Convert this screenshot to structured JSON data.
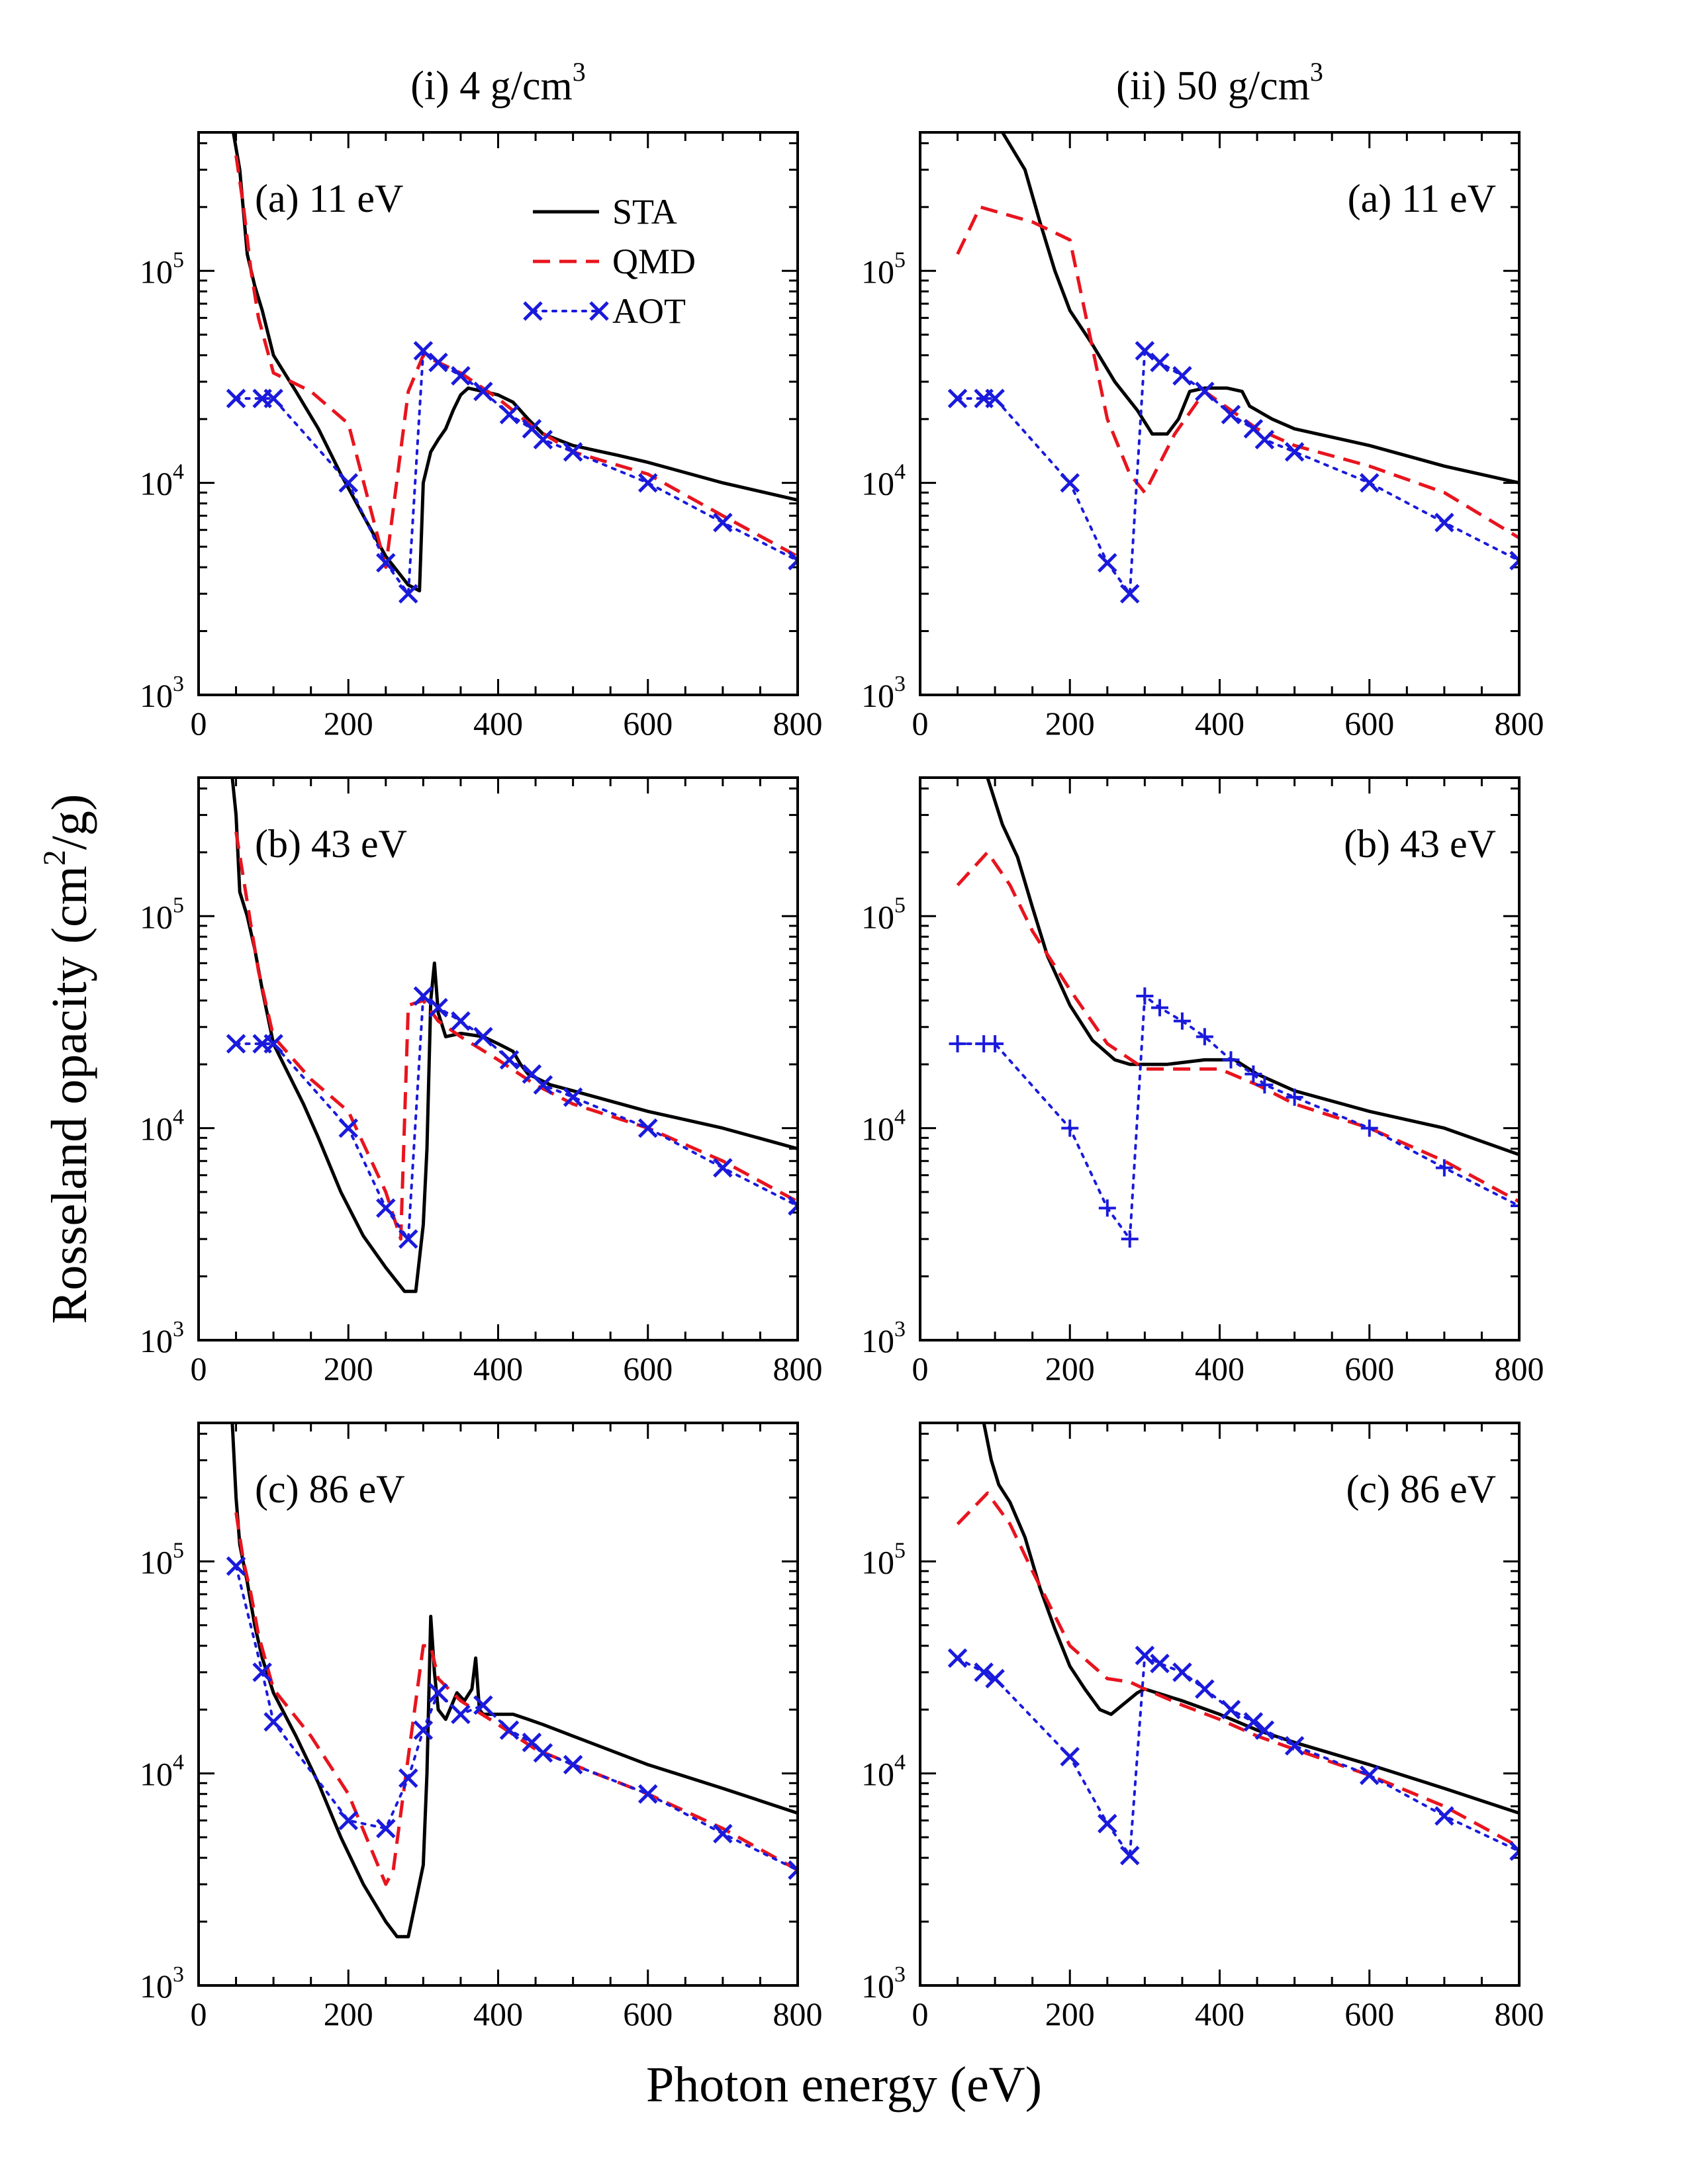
{
  "figure": {
    "xlabel": "Photon energy (eV)",
    "ylabel_main": "Rosseland opacity (cm",
    "ylabel_sup": "2",
    "ylabel_end": "/g)",
    "columns": [
      {
        "title_main": "(i) 4 g/cm",
        "title_sup": "3"
      },
      {
        "title_main": "(ii) 50 g/cm",
        "title_sup": "3"
      }
    ],
    "x_ticks": [
      "0",
      "200",
      "400",
      "600",
      "800"
    ],
    "y_ticks": [
      {
        "base": "10",
        "exp": "3"
      },
      {
        "base": "10",
        "exp": "4"
      },
      {
        "base": "10",
        "exp": "5"
      }
    ],
    "colors": {
      "STA": "#000000",
      "QMD": "#e8141e",
      "AOT": "#1a1adc"
    },
    "legend": [
      {
        "label": "STA",
        "style": "solid"
      },
      {
        "label": "QMD",
        "style": "dashed"
      },
      {
        "label": "AOT",
        "style": "dotted-x"
      }
    ]
  },
  "chart_data": [
    {
      "type": "line",
      "panel": "(a) 11 eV",
      "column": "(i) 4 g/cm3",
      "xlim": [
        0,
        800
      ],
      "ylim": [
        1000,
        450000
      ],
      "yscale": "log",
      "series": [
        {
          "name": "STA",
          "x": [
            45,
            55,
            65,
            75,
            85,
            100,
            130,
            160,
            190,
            220,
            250,
            280,
            295,
            300,
            310,
            320,
            330,
            340,
            350,
            360,
            380,
            400,
            420,
            440,
            460,
            500,
            560,
            600,
            700,
            800
          ],
          "y": [
            480000,
            300000,
            120000,
            85000,
            65000,
            40000,
            27000,
            18000,
            11000,
            7000,
            4500,
            3300,
            3100,
            10000,
            14000,
            16000,
            18000,
            22000,
            26000,
            28000,
            27000,
            26000,
            24000,
            20000,
            17000,
            15000,
            13500,
            12500,
            10000,
            8300
          ]
        },
        {
          "name": "QMD",
          "x": [
            50,
            60,
            70,
            80,
            100,
            150,
            200,
            250,
            280,
            300,
            350,
            400,
            450,
            500,
            600,
            700,
            800
          ],
          "y": [
            350000,
            200000,
            100000,
            60000,
            33000,
            27000,
            19000,
            4000,
            27000,
            40000,
            33000,
            25000,
            18000,
            14000,
            11000,
            7000,
            4500
          ]
        },
        {
          "name": "AOT",
          "x": [
            50,
            85,
            100,
            200,
            250,
            280,
            300,
            320,
            350,
            380,
            415,
            445,
            460,
            500,
            600,
            700,
            800
          ],
          "y": [
            25000,
            25000,
            25000,
            10000,
            4200,
            3000,
            42000,
            37000,
            32000,
            27000,
            21000,
            18000,
            16000,
            14000,
            10000,
            6500,
            4300
          ]
        }
      ]
    },
    {
      "type": "line",
      "panel": "(a) 11 eV",
      "column": "(ii) 50 g/cm3",
      "xlim": [
        0,
        800
      ],
      "ylim": [
        1000,
        450000
      ],
      "yscale": "log",
      "series": [
        {
          "name": "STA",
          "x": [
            110,
            140,
            160,
            180,
            200,
            230,
            260,
            290,
            310,
            330,
            345,
            360,
            380,
            410,
            430,
            440,
            470,
            500,
            600,
            700,
            800
          ],
          "y": [
            450000,
            300000,
            170000,
            100000,
            65000,
            45000,
            30000,
            22000,
            17000,
            17000,
            20000,
            27000,
            28000,
            28000,
            27000,
            23000,
            20000,
            18000,
            15000,
            12000,
            10000
          ]
        },
        {
          "name": "QMD",
          "x": [
            50,
            80,
            150,
            200,
            250,
            280,
            300,
            340,
            380,
            400,
            450,
            500,
            600,
            700,
            800
          ],
          "y": [
            120000,
            200000,
            170000,
            140000,
            20000,
            11000,
            9000,
            17000,
            27000,
            24000,
            18000,
            15000,
            12000,
            9000,
            5500
          ]
        },
        {
          "name": "AOT",
          "x": [
            50,
            85,
            100,
            200,
            250,
            280,
            300,
            320,
            350,
            380,
            415,
            445,
            460,
            500,
            600,
            700,
            800
          ],
          "y": [
            25000,
            25000,
            25000,
            10000,
            4200,
            3000,
            42000,
            37000,
            32000,
            27000,
            21000,
            18000,
            16000,
            14000,
            10000,
            6500,
            4300
          ]
        }
      ]
    },
    {
      "type": "line",
      "panel": "(b) 43 eV",
      "column": "(i) 4 g/cm3",
      "xlim": [
        0,
        800
      ],
      "ylim": [
        1000,
        450000
      ],
      "yscale": "log",
      "series": [
        {
          "name": "STA",
          "x": [
            45,
            50,
            55,
            65,
            75,
            85,
            100,
            140,
            160,
            190,
            220,
            250,
            275,
            290,
            300,
            305,
            310,
            315,
            320,
            330,
            350,
            380,
            400,
            420,
            430,
            440,
            470,
            500,
            600,
            700,
            800
          ],
          "y": [
            450000,
            300000,
            130000,
            100000,
            70000,
            45000,
            25000,
            13000,
            9000,
            5000,
            3100,
            2200,
            1700,
            1700,
            3500,
            8000,
            40000,
            60000,
            35000,
            27000,
            28000,
            27000,
            25000,
            23000,
            20000,
            18000,
            16000,
            15000,
            12000,
            10000,
            8000
          ]
        },
        {
          "name": "QMD",
          "x": [
            50,
            60,
            70,
            80,
            100,
            150,
            200,
            250,
            270,
            280,
            300,
            320,
            350,
            400,
            450,
            500,
            600,
            700,
            800
          ],
          "y": [
            250000,
            150000,
            90000,
            55000,
            27000,
            17000,
            12000,
            5000,
            3000,
            38000,
            40000,
            32000,
            27000,
            21000,
            16000,
            13000,
            10000,
            7000,
            4500
          ]
        },
        {
          "name": "AOT",
          "x": [
            50,
            85,
            100,
            200,
            250,
            280,
            300,
            320,
            350,
            380,
            415,
            445,
            460,
            500,
            600,
            700,
            800
          ],
          "y": [
            25000,
            25000,
            25000,
            10000,
            4200,
            3000,
            42000,
            37000,
            32000,
            27000,
            21000,
            18000,
            16000,
            14000,
            10000,
            6500,
            4300
          ]
        }
      ]
    },
    {
      "type": "line",
      "panel": "(b) 43 eV",
      "column": "(ii) 50 g/cm3",
      "xlim": [
        0,
        800
      ],
      "ylim": [
        1000,
        450000
      ],
      "yscale": "log",
      "series": [
        {
          "name": "STA",
          "x": [
            90,
            110,
            130,
            150,
            170,
            200,
            230,
            260,
            280,
            300,
            330,
            380,
            420,
            450,
            500,
            600,
            700,
            800
          ],
          "y": [
            450000,
            270000,
            190000,
            110000,
            65000,
            38000,
            26000,
            21000,
            20000,
            20000,
            20000,
            21000,
            21000,
            18000,
            15000,
            12000,
            10000,
            7500
          ]
        },
        {
          "name": "QMD",
          "x": [
            50,
            90,
            120,
            150,
            200,
            250,
            300,
            350,
            400,
            450,
            500,
            600,
            700,
            800
          ],
          "y": [
            140000,
            200000,
            140000,
            85000,
            45000,
            25000,
            19000,
            19000,
            19000,
            16000,
            13000,
            10000,
            7000,
            4500
          ]
        },
        {
          "name": "AOT",
          "x": [
            50,
            85,
            100,
            200,
            250,
            280,
            300,
            320,
            350,
            380,
            415,
            445,
            460,
            500,
            600,
            700,
            800
          ],
          "y": [
            25000,
            25000,
            25000,
            10000,
            4200,
            3000,
            42000,
            37000,
            32000,
            27000,
            21000,
            18000,
            16000,
            14000,
            10000,
            6500,
            4300
          ]
        }
      ]
    },
    {
      "type": "line",
      "panel": "(c) 86 eV",
      "column": "(i) 4 g/cm3",
      "xlim": [
        0,
        800
      ],
      "ylim": [
        1000,
        450000
      ],
      "yscale": "log",
      "series": [
        {
          "name": "STA",
          "x": [
            45,
            50,
            55,
            65,
            75,
            85,
            100,
            130,
            160,
            190,
            220,
            250,
            265,
            280,
            290,
            300,
            305,
            310,
            315,
            320,
            330,
            345,
            355,
            365,
            370,
            375,
            380,
            400,
            420,
            440,
            460,
            500,
            600,
            700,
            800
          ],
          "y": [
            450000,
            200000,
            120000,
            80000,
            50000,
            35000,
            24000,
            15000,
            9000,
            5000,
            3000,
            2000,
            1700,
            1700,
            2500,
            3700,
            10000,
            55000,
            30000,
            20000,
            18000,
            24000,
            22000,
            25000,
            35000,
            20000,
            19000,
            19000,
            19000,
            18000,
            17000,
            15000,
            11000,
            8500,
            6500
          ]
        },
        {
          "name": "QMD",
          "x": [
            50,
            60,
            70,
            80,
            100,
            150,
            200,
            250,
            260,
            280,
            300,
            310,
            320,
            350,
            400,
            450,
            500,
            600,
            700,
            800
          ],
          "y": [
            170000,
            100000,
            70000,
            45000,
            25000,
            15000,
            8000,
            3000,
            3500,
            12000,
            40000,
            40000,
            28000,
            22000,
            17000,
            13000,
            11000,
            8000,
            5500,
            3500
          ]
        },
        {
          "name": "AOT",
          "x": [
            50,
            85,
            100,
            200,
            250,
            280,
            300,
            320,
            350,
            380,
            415,
            445,
            460,
            500,
            600,
            700,
            800
          ],
          "y": [
            95000,
            30000,
            17500,
            6000,
            5500,
            9500,
            16000,
            24000,
            19000,
            21000,
            16000,
            14000,
            12500,
            11000,
            8000,
            5200,
            3500
          ]
        }
      ]
    },
    {
      "type": "line",
      "panel": "(c) 86 eV",
      "column": "(ii) 50 g/cm3",
      "xlim": [
        0,
        800
      ],
      "ylim": [
        1000,
        450000
      ],
      "yscale": "log",
      "series": [
        {
          "name": "STA",
          "x": [
            85,
            95,
            105,
            120,
            140,
            160,
            180,
            200,
            220,
            240,
            255,
            270,
            290,
            300,
            350,
            400,
            450,
            500,
            600,
            700,
            800
          ],
          "y": [
            450000,
            300000,
            230000,
            190000,
            130000,
            75000,
            48000,
            32000,
            25000,
            20000,
            19000,
            21000,
            24000,
            25000,
            22000,
            19000,
            16000,
            14000,
            11000,
            8500,
            6500
          ]
        },
        {
          "name": "QMD",
          "x": [
            50,
            90,
            120,
            150,
            200,
            250,
            280,
            300,
            350,
            400,
            450,
            500,
            600,
            700,
            800
          ],
          "y": [
            150000,
            210000,
            150000,
            90000,
            40000,
            28000,
            27000,
            25000,
            21000,
            18000,
            15000,
            13000,
            9800,
            7000,
            4500
          ]
        },
        {
          "name": "AOT",
          "x": [
            50,
            85,
            100,
            200,
            250,
            280,
            300,
            320,
            350,
            380,
            415,
            445,
            460,
            500,
            600,
            700,
            800
          ],
          "y": [
            35000,
            30000,
            28000,
            12000,
            5800,
            4100,
            36000,
            33000,
            30000,
            25000,
            20000,
            17500,
            16000,
            13500,
            9800,
            6300,
            4300
          ]
        }
      ]
    }
  ],
  "panels": [
    {
      "label": "(a) 11 eV",
      "side": "left",
      "row": 0,
      "col": 0
    },
    {
      "label": "(a) 11 eV",
      "side": "right",
      "row": 0,
      "col": 1
    },
    {
      "label": "(b) 43 eV",
      "side": "left",
      "row": 1,
      "col": 0
    },
    {
      "label": "(b) 43 eV",
      "side": "right",
      "row": 1,
      "col": 1
    },
    {
      "label": "(c) 86 eV",
      "side": "left",
      "row": 2,
      "col": 0
    },
    {
      "label": "(c) 86 eV",
      "side": "right",
      "row": 2,
      "col": 1
    }
  ]
}
